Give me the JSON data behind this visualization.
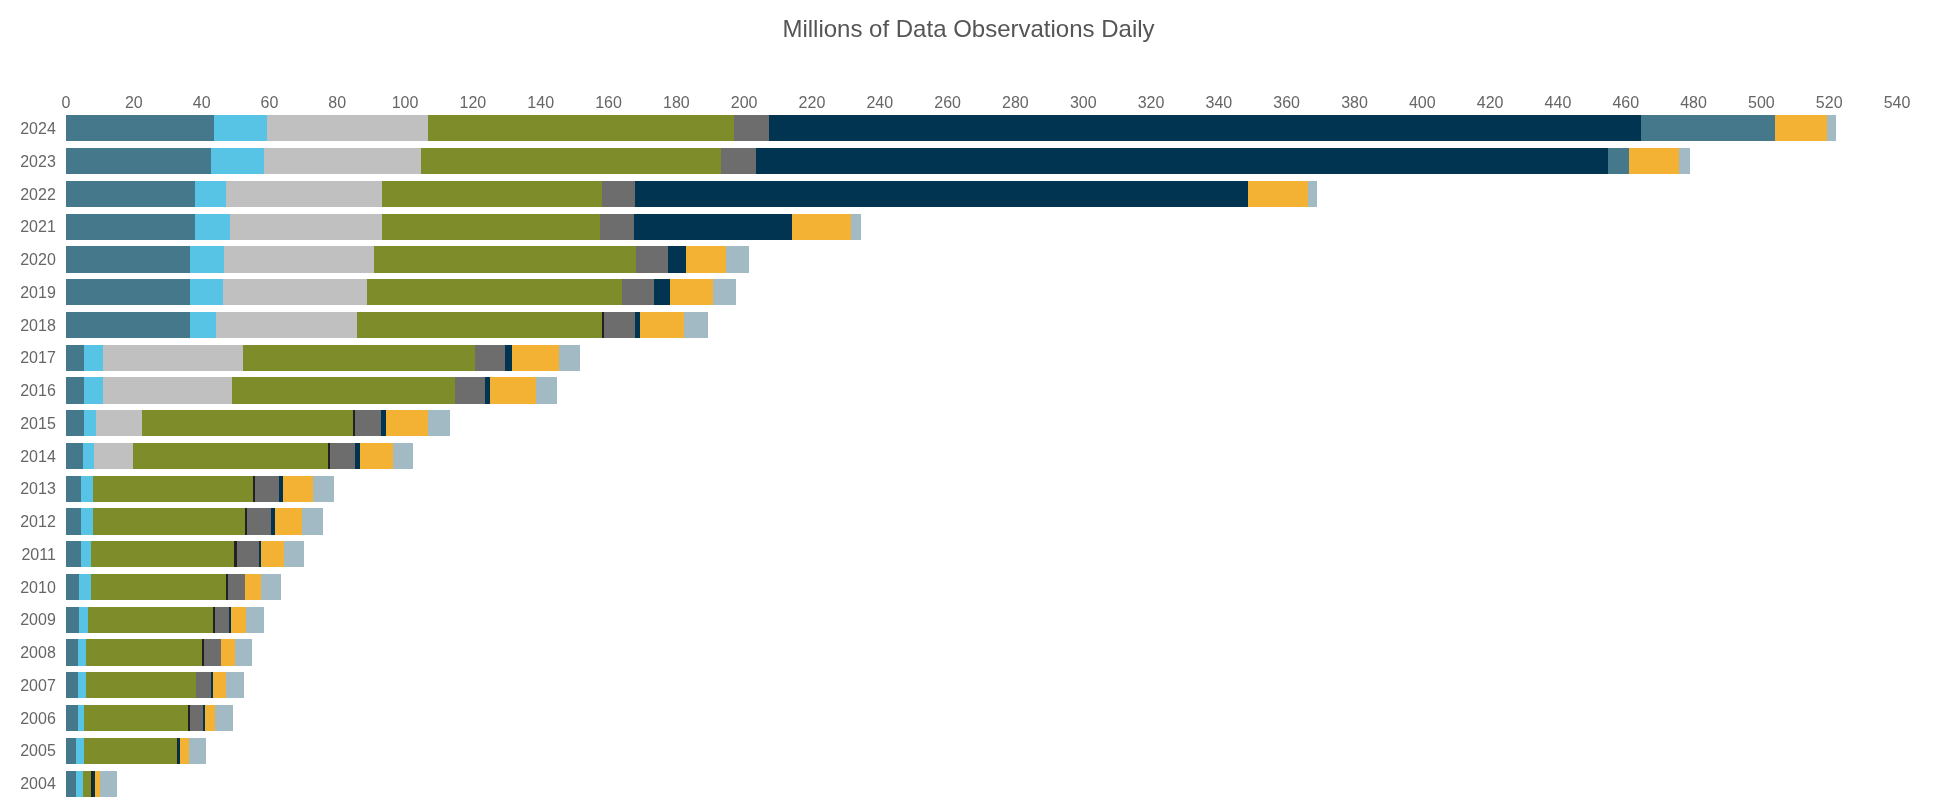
{
  "chart_data": {
    "type": "bar",
    "orientation": "horizontal",
    "stacked": true,
    "title": "Millions of Data Observations Daily",
    "categories": [
      "2024",
      "2023",
      "2022",
      "2021",
      "2020",
      "2019",
      "2018",
      "2017",
      "2016",
      "2015",
      "2014",
      "2013",
      "2012",
      "2011",
      "2010",
      "2009",
      "2008",
      "2007",
      "2006",
      "2005",
      "2004"
    ],
    "xlim": [
      0,
      540
    ],
    "xticks": [
      0,
      20,
      40,
      60,
      80,
      100,
      120,
      140,
      160,
      180,
      200,
      220,
      240,
      260,
      280,
      300,
      320,
      340,
      360,
      380,
      400,
      420,
      440,
      460,
      480,
      500,
      520,
      540
    ],
    "legend": false,
    "series": [
      {
        "color": "#45788a",
        "values": [
          43.7,
          42.8,
          37.9,
          37.9,
          36.5,
          36.5,
          36.5,
          5.3,
          5.3,
          5.3,
          4.9,
          4.4,
          4.4,
          4.4,
          3.9,
          3.9,
          3.4,
          3.4,
          3.4,
          2.9,
          2.9
        ]
      },
      {
        "color": "#57c4e5",
        "values": [
          15.5,
          15.5,
          9.3,
          10.4,
          10.2,
          9.8,
          7.8,
          5.5,
          5.5,
          3.5,
          3.5,
          3.5,
          3.5,
          3.0,
          3.5,
          2.5,
          2.5,
          2.5,
          2.0,
          2.5,
          2.0
        ]
      },
      {
        "color": "#c0c0c0",
        "values": [
          47.7,
          46.4,
          46.1,
          45.0,
          44.1,
          42.5,
          41.5,
          41.4,
          38.1,
          13.5,
          11.4,
          null,
          null,
          null,
          null,
          null,
          null,
          null,
          null,
          null,
          null
        ]
      },
      {
        "color": "#7e8c2a",
        "values": [
          90.1,
          88.5,
          64.9,
          64.2,
          77.2,
          75.3,
          72.5,
          68.5,
          65.9,
          62.4,
          57.6,
          47.3,
          45.0,
          42.4,
          40.0,
          37.0,
          34.4,
          32.4,
          30.6,
          27.5,
          2.4
        ]
      },
      {
        "color": "#222222",
        "values": [
          null,
          null,
          null,
          null,
          null,
          null,
          0.5,
          null,
          null,
          0.5,
          0.5,
          0.5,
          0.5,
          0.5,
          0.5,
          0.5,
          0.5,
          null,
          0.5,
          0.3,
          0.6
        ]
      },
      {
        "color": "#6d6d6d",
        "values": [
          10.4,
          10.2,
          9.6,
          10.0,
          9.4,
          9.3,
          8.9,
          8.9,
          8.9,
          7.8,
          7.3,
          7.2,
          7.2,
          6.9,
          4.8,
          4.4,
          4.8,
          4.6,
          4.0,
          null,
          null
        ]
      },
      {
        "color": "#003451",
        "values": [
          257.2,
          251.4,
          180.7,
          46.6,
          5.4,
          4.6,
          1.5,
          2.0,
          1.4,
          1.5,
          1.4,
          1.0,
          0.9,
          0.4,
          null,
          0.4,
          null,
          0.5,
          0.4,
          0.3,
          0.7
        ]
      },
      {
        "color": "#45788a",
        "values": [
          39.5,
          6.3,
          null,
          null,
          null,
          null,
          null,
          null,
          null,
          null,
          null,
          null,
          null,
          null,
          null,
          null,
          null,
          null,
          null,
          null,
          null
        ]
      },
      {
        "color": "#f4b234",
        "values": [
          15.2,
          14.5,
          17.7,
          17.4,
          11.8,
          12.7,
          13.0,
          13.8,
          13.4,
          12.4,
          9.9,
          8.9,
          8.0,
          6.8,
          4.9,
          4.4,
          4.1,
          3.7,
          2.9,
          2.9,
          1.3
        ]
      },
      {
        "color": "#a2bac4",
        "values": [
          2.8,
          3.3,
          2.8,
          2.9,
          6.8,
          6.8,
          7.0,
          6.3,
          6.2,
          6.4,
          5.9,
          6.3,
          6.2,
          5.9,
          5.8,
          5.4,
          5.3,
          5.4,
          5.4,
          4.9,
          5.0
        ]
      }
    ]
  }
}
